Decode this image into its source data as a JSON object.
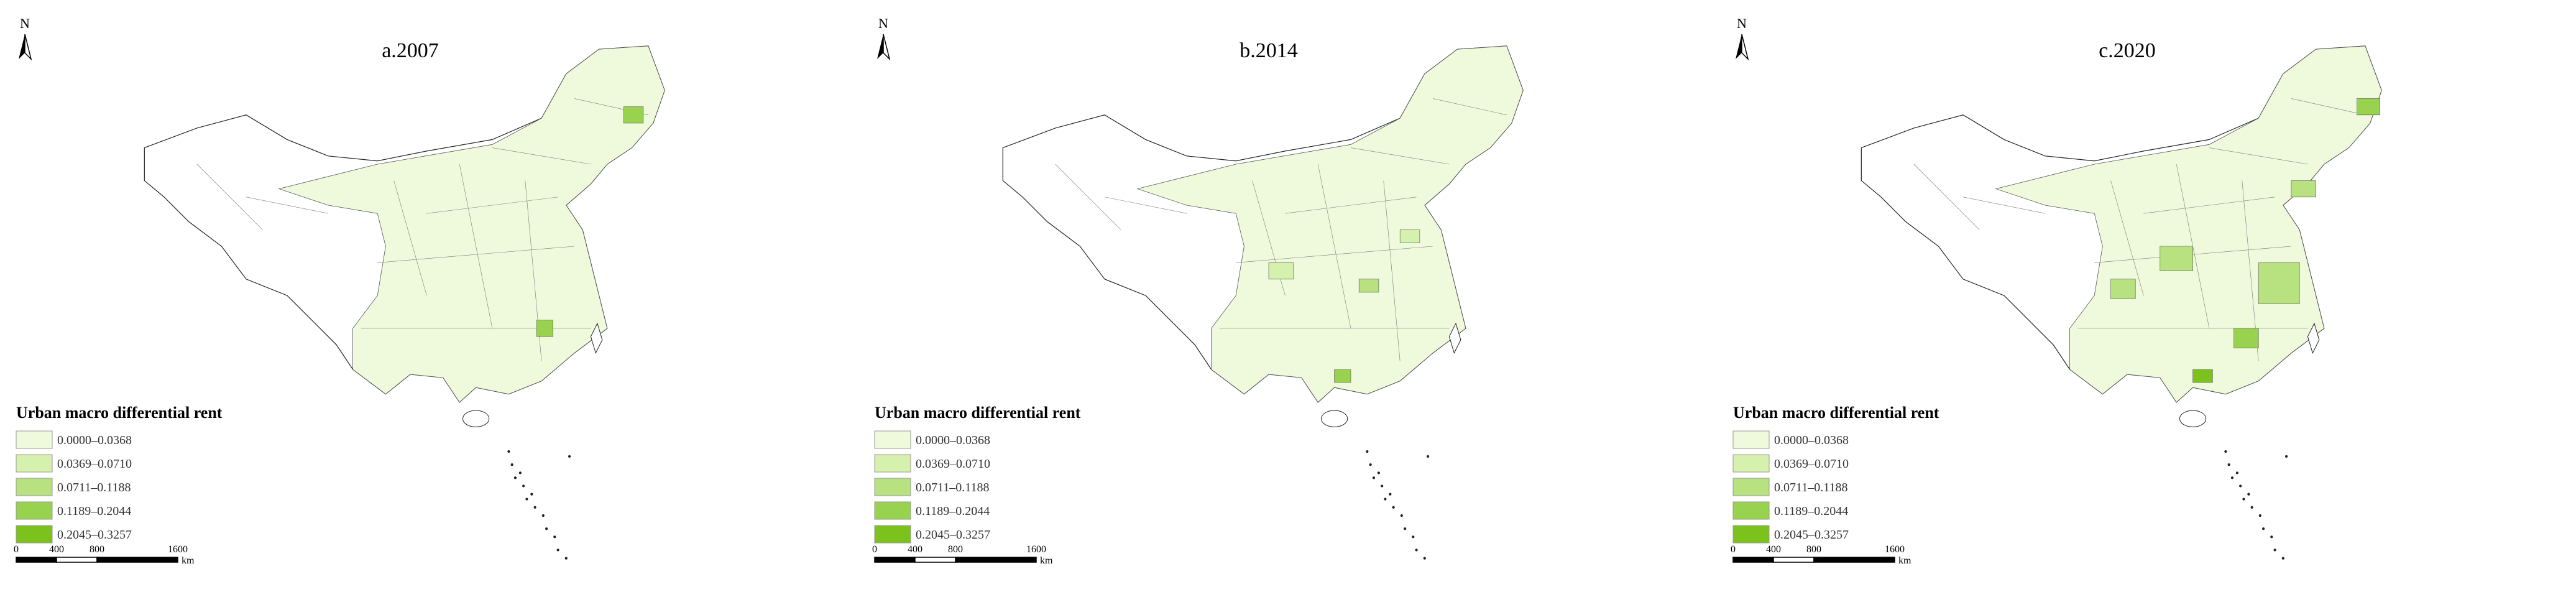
{
  "north": "N",
  "panels": [
    {
      "title": "a.2007",
      "legend": {
        "title": "Urban macro differential rent",
        "items": [
          {
            "label": "0.0000–0.0368",
            "color": "#eff9dc"
          },
          {
            "label": "0.0369–0.0710",
            "color": "#d6f0ad"
          },
          {
            "label": "0.0711–0.1188",
            "color": "#b8e17f"
          },
          {
            "label": "0.1189–0.2044",
            "color": "#99d24e"
          },
          {
            "label": "0.2045–0.3257",
            "color": "#7cc21c"
          }
        ]
      },
      "scale_bar": {
        "ticks": [
          0,
          400,
          800,
          1600
        ],
        "unit": "km"
      }
    },
    {
      "title": "b.2014",
      "legend": {
        "title": "Urban macro differential rent",
        "items": [
          {
            "label": "0.0000–0.0368",
            "color": "#eff9dc"
          },
          {
            "label": "0.0369–0.0710",
            "color": "#d6f0ad"
          },
          {
            "label": "0.0711–0.1188",
            "color": "#b8e17f"
          },
          {
            "label": "0.1189–0.2044",
            "color": "#99d24e"
          },
          {
            "label": "0.2045–0.3257",
            "color": "#7cc21c"
          }
        ]
      },
      "scale_bar": {
        "ticks": [
          0,
          400,
          800,
          1600
        ],
        "unit": "km"
      }
    },
    {
      "title": "c.2020",
      "legend": {
        "title": "Urban macro differential rent",
        "items": [
          {
            "label": "0.0000–0.0368",
            "color": "#eff9dc"
          },
          {
            "label": "0.0369–0.0710",
            "color": "#d6f0ad"
          },
          {
            "label": "0.0711–0.1188",
            "color": "#b8e17f"
          },
          {
            "label": "0.1189–0.2044",
            "color": "#99d24e"
          },
          {
            "label": "0.2045–0.3257",
            "color": "#7cc21c"
          }
        ]
      },
      "scale_bar": {
        "ticks": [
          0,
          400,
          800,
          1600
        ],
        "unit": "km"
      }
    }
  ]
}
